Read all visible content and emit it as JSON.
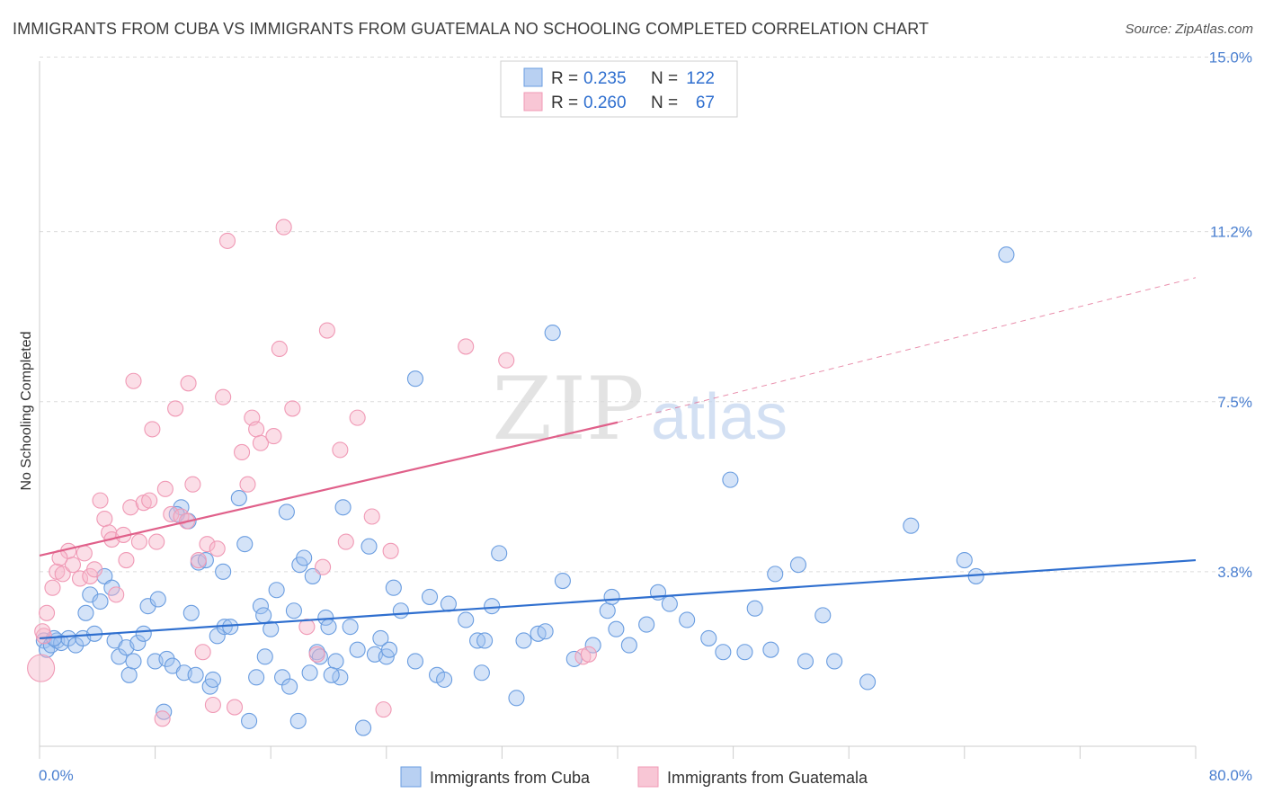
{
  "title": "IMMIGRANTS FROM CUBA VS IMMIGRANTS FROM GUATEMALA NO SCHOOLING COMPLETED CORRELATION CHART",
  "source": "Source: ZipAtlas.com",
  "watermark": {
    "zip": "ZIP",
    "atlas": "atlas"
  },
  "chart_data": {
    "type": "scatter",
    "title": "IMMIGRANTS FROM CUBA VS IMMIGRANTS FROM GUATEMALA NO SCHOOLING COMPLETED CORRELATION CHART",
    "xlabel": "",
    "ylabel": "No Schooling Completed",
    "xlim": [
      0,
      80
    ],
    "ylim": [
      0,
      15.5
    ],
    "x_tick_labels": [
      "0.0%",
      "80.0%"
    ],
    "y_ticks": [
      {
        "value": 3.8,
        "label": "3.8%"
      },
      {
        "value": 7.5,
        "label": "7.5%"
      },
      {
        "value": 11.2,
        "label": "11.2%"
      },
      {
        "value": 15.0,
        "label": "15.0%"
      }
    ],
    "grid": true,
    "legend_position": "top-center",
    "series": [
      {
        "name": "Immigrants from Cuba",
        "color": "#6a9de0",
        "line_color": "#2f6fcf",
        "R": "0.235",
        "N": "122",
        "trend": {
          "x0": 0,
          "y0": 2.35,
          "x1": 80,
          "y1": 4.05
        },
        "points": [
          [
            0.3,
            2.3
          ],
          [
            0.5,
            2.1
          ],
          [
            0.8,
            2.2
          ],
          [
            1.2,
            2.3
          ],
          [
            1.5,
            2.25
          ],
          [
            2.0,
            2.35
          ],
          [
            2.5,
            2.2
          ],
          [
            3.0,
            2.35
          ],
          [
            3.2,
            2.9
          ],
          [
            3.5,
            3.3
          ],
          [
            3.8,
            2.45
          ],
          [
            4.2,
            3.15
          ],
          [
            4.5,
            3.7
          ],
          [
            5.0,
            3.45
          ],
          [
            5.2,
            2.3
          ],
          [
            5.5,
            1.95
          ],
          [
            6.0,
            2.15
          ],
          [
            6.2,
            1.55
          ],
          [
            6.5,
            1.85
          ],
          [
            6.8,
            2.25
          ],
          [
            7.2,
            2.45
          ],
          [
            7.5,
            3.05
          ],
          [
            8.0,
            1.85
          ],
          [
            8.2,
            3.2
          ],
          [
            8.6,
            0.75
          ],
          [
            8.8,
            1.9
          ],
          [
            9.2,
            1.75
          ],
          [
            9.8,
            5.2
          ],
          [
            10.0,
            1.6
          ],
          [
            10.3,
            4.9
          ],
          [
            10.5,
            2.9
          ],
          [
            10.8,
            1.55
          ],
          [
            11.0,
            4.0
          ],
          [
            11.5,
            4.05
          ],
          [
            11.8,
            1.3
          ],
          [
            12.0,
            1.45
          ],
          [
            12.3,
            2.4
          ],
          [
            12.8,
            2.6
          ],
          [
            13.2,
            2.6
          ],
          [
            13.8,
            5.4
          ],
          [
            14.2,
            4.4
          ],
          [
            14.5,
            0.55
          ],
          [
            15.0,
            1.5
          ],
          [
            15.3,
            3.05
          ],
          [
            15.6,
            1.95
          ],
          [
            16.0,
            2.55
          ],
          [
            16.4,
            3.4
          ],
          [
            16.8,
            1.5
          ],
          [
            17.1,
            5.1
          ],
          [
            17.3,
            1.3
          ],
          [
            17.6,
            2.95
          ],
          [
            17.9,
            0.55
          ],
          [
            18.0,
            3.95
          ],
          [
            18.3,
            4.1
          ],
          [
            18.7,
            1.6
          ],
          [
            18.9,
            3.7
          ],
          [
            19.2,
            2.05
          ],
          [
            19.4,
            1.95
          ],
          [
            19.8,
            2.8
          ],
          [
            20.0,
            2.6
          ],
          [
            20.5,
            1.85
          ],
          [
            20.8,
            1.5
          ],
          [
            21.0,
            5.2
          ],
          [
            21.5,
            2.6
          ],
          [
            22.0,
            2.1
          ],
          [
            22.4,
            0.4
          ],
          [
            22.8,
            4.35
          ],
          [
            23.2,
            2.0
          ],
          [
            23.6,
            2.35
          ],
          [
            24.0,
            1.95
          ],
          [
            24.2,
            2.1
          ],
          [
            24.5,
            3.45
          ],
          [
            25.0,
            2.95
          ],
          [
            26.0,
            1.85
          ],
          [
            27.0,
            3.25
          ],
          [
            27.5,
            1.55
          ],
          [
            28.0,
            1.45
          ],
          [
            28.3,
            3.1
          ],
          [
            29.5,
            2.75
          ],
          [
            30.3,
            2.3
          ],
          [
            30.6,
            1.6
          ],
          [
            30.8,
            2.3
          ],
          [
            31.3,
            3.05
          ],
          [
            31.8,
            4.2
          ],
          [
            33.0,
            1.05
          ],
          [
            33.5,
            2.3
          ],
          [
            34.5,
            2.45
          ],
          [
            35.0,
            2.5
          ],
          [
            35.5,
            9.0
          ],
          [
            36.2,
            3.6
          ],
          [
            37.0,
            1.9
          ],
          [
            38.3,
            2.2
          ],
          [
            39.3,
            2.95
          ],
          [
            39.6,
            3.25
          ],
          [
            39.9,
            2.55
          ],
          [
            40.8,
            2.2
          ],
          [
            42.0,
            2.65
          ],
          [
            42.8,
            3.35
          ],
          [
            43.6,
            3.1
          ],
          [
            44.8,
            2.75
          ],
          [
            46.3,
            2.35
          ],
          [
            47.3,
            2.05
          ],
          [
            47.8,
            5.8
          ],
          [
            48.8,
            2.05
          ],
          [
            49.5,
            3.0
          ],
          [
            50.6,
            2.1
          ],
          [
            50.9,
            3.75
          ],
          [
            52.5,
            3.95
          ],
          [
            53.0,
            1.85
          ],
          [
            54.2,
            2.85
          ],
          [
            55.0,
            1.85
          ],
          [
            57.3,
            1.4
          ],
          [
            60.3,
            4.8
          ],
          [
            64.0,
            4.05
          ],
          [
            64.8,
            3.7
          ],
          [
            66.9,
            10.7
          ],
          [
            1.0,
            2.35
          ],
          [
            26.0,
            8.0
          ],
          [
            9.5,
            5.05
          ],
          [
            12.7,
            3.8
          ],
          [
            15.5,
            2.85
          ],
          [
            20.2,
            1.55
          ]
        ]
      },
      {
        "name": "Immigrants from Guatemala",
        "color": "#f099b5",
        "line_color": "#e0608a",
        "R": "0.260",
        "N": "67",
        "trend": {
          "x0": 0,
          "y0": 4.15,
          "x1": 40,
          "y1": 7.05
        },
        "trend_dashed": {
          "x0": 40,
          "y0": 7.05,
          "x1": 80,
          "y1": 10.2
        },
        "points": [
          [
            0.1,
            1.7
          ],
          [
            0.3,
            2.4
          ],
          [
            0.5,
            2.9
          ],
          [
            0.9,
            3.45
          ],
          [
            1.2,
            3.8
          ],
          [
            1.6,
            3.75
          ],
          [
            2.0,
            4.25
          ],
          [
            2.3,
            3.95
          ],
          [
            2.8,
            3.65
          ],
          [
            3.1,
            4.2
          ],
          [
            3.5,
            3.7
          ],
          [
            3.8,
            3.85
          ],
          [
            4.2,
            5.35
          ],
          [
            4.5,
            4.95
          ],
          [
            4.8,
            4.65
          ],
          [
            5.0,
            4.5
          ],
          [
            5.3,
            3.3
          ],
          [
            5.8,
            4.6
          ],
          [
            6.0,
            4.05
          ],
          [
            6.3,
            5.2
          ],
          [
            6.5,
            7.95
          ],
          [
            6.9,
            4.45
          ],
          [
            7.2,
            5.3
          ],
          [
            7.6,
            5.35
          ],
          [
            7.8,
            6.9
          ],
          [
            8.1,
            4.45
          ],
          [
            8.5,
            0.6
          ],
          [
            8.7,
            5.6
          ],
          [
            9.1,
            5.05
          ],
          [
            9.4,
            7.35
          ],
          [
            9.8,
            5.0
          ],
          [
            10.2,
            4.9
          ],
          [
            10.3,
            7.9
          ],
          [
            10.6,
            5.7
          ],
          [
            11.0,
            4.05
          ],
          [
            11.3,
            2.05
          ],
          [
            11.6,
            4.4
          ],
          [
            12.0,
            0.9
          ],
          [
            12.3,
            4.3
          ],
          [
            12.7,
            7.6
          ],
          [
            13.0,
            11.0
          ],
          [
            13.5,
            0.85
          ],
          [
            14.0,
            6.4
          ],
          [
            14.4,
            5.7
          ],
          [
            14.7,
            7.15
          ],
          [
            15.0,
            6.9
          ],
          [
            15.3,
            6.6
          ],
          [
            16.2,
            6.75
          ],
          [
            16.6,
            8.65
          ],
          [
            16.9,
            11.3
          ],
          [
            17.5,
            7.35
          ],
          [
            18.5,
            2.6
          ],
          [
            19.2,
            2.0
          ],
          [
            19.6,
            3.9
          ],
          [
            19.9,
            9.05
          ],
          [
            20.8,
            6.45
          ],
          [
            21.2,
            4.45
          ],
          [
            22.0,
            7.15
          ],
          [
            23.0,
            5.0
          ],
          [
            23.8,
            0.8
          ],
          [
            24.3,
            4.25
          ],
          [
            29.5,
            8.7
          ],
          [
            32.3,
            8.4
          ],
          [
            37.6,
            1.95
          ],
          [
            38.0,
            2.0
          ],
          [
            0.2,
            2.5
          ],
          [
            1.4,
            4.1
          ]
        ]
      }
    ]
  },
  "legend": {
    "r_label": "R =",
    "n_label": "N =",
    "cuba_r": "0.235",
    "cuba_n": "122",
    "guat_r": "0.260",
    "guat_n": "67"
  },
  "bottom_legend": {
    "cuba": "Immigrants from Cuba",
    "guatemala": "Immigrants from Guatemala"
  }
}
